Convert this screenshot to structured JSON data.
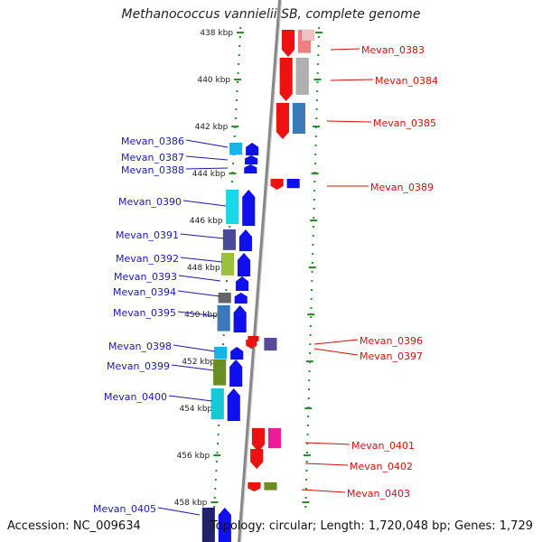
{
  "title": "Methanococcus vannielii SB, complete genome",
  "footer": {
    "accession": "Accession: NC_009634",
    "summary": "Topology: circular; Length: 1,720,048 bp; Genes: 1,729"
  },
  "ruler": {
    "labels": [
      "438 kbp",
      "440 kbp",
      "442 kbp",
      "444 kbp",
      "446 kbp",
      "448 kbp",
      "450 kbp",
      "452 kbp",
      "454 kbp",
      "456 kbp",
      "458 kbp"
    ]
  },
  "genes_right": [
    {
      "id": "Mevan_0383",
      "strand": "-",
      "color": "#ee1111",
      "cog": "#f08080"
    },
    {
      "id": "Mevan_0384",
      "strand": "-",
      "color": "#ee1111",
      "cog": "#b0b0b0"
    },
    {
      "id": "Mevan_0385",
      "strand": "-",
      "color": "#ee1111",
      "cog": "#3a7ab8"
    },
    {
      "id": "Mevan_0389",
      "strand": "-",
      "color": "#ee1111",
      "cog": "#1010ee"
    },
    {
      "id": "Mevan_0396",
      "strand": "-",
      "color": "#ee1111",
      "cog": "#5a4a9a"
    },
    {
      "id": "Mevan_0397",
      "strand": "-",
      "color": "#ee1111",
      "cog": ""
    },
    {
      "id": "Mevan_0401",
      "strand": "-",
      "color": "#ee1111",
      "cog": "#ee1a9a"
    },
    {
      "id": "Mevan_0402",
      "strand": "-",
      "color": "#ee1111",
      "cog": ""
    },
    {
      "id": "Mevan_0403",
      "strand": "-",
      "color": "#ee1111",
      "cog": "#6a8e23"
    }
  ],
  "genes_left": [
    {
      "id": "Mevan_0386",
      "strand": "+",
      "color": "#1010ee",
      "cog": "#19b4e6"
    },
    {
      "id": "Mevan_0387",
      "strand": "+",
      "color": "#1010ee",
      "cog": ""
    },
    {
      "id": "Mevan_0388",
      "strand": "+",
      "color": "#1010ee",
      "cog": ""
    },
    {
      "id": "Mevan_0390",
      "strand": "+",
      "color": "#1010ee",
      "cog": "#19d8e8"
    },
    {
      "id": "Mevan_0391",
      "strand": "+",
      "color": "#1010ee",
      "cog": "#4a4a9a"
    },
    {
      "id": "Mevan_0392",
      "strand": "+",
      "color": "#1010ee",
      "cog": "#9ac23a"
    },
    {
      "id": "Mevan_0393",
      "strand": "+",
      "color": "#1010ee",
      "cog": ""
    },
    {
      "id": "Mevan_0394",
      "strand": "+",
      "color": "#1010ee",
      "cog": "#666666"
    },
    {
      "id": "Mevan_0395",
      "strand": "+",
      "color": "#1010ee",
      "cog": "#3a7ab8"
    },
    {
      "id": "Mevan_0398",
      "strand": "+",
      "color": "#1010ee",
      "cog": "#19b4e6"
    },
    {
      "id": "Mevan_0399",
      "strand": "+",
      "color": "#1010ee",
      "cog": "#6a8e23"
    },
    {
      "id": "Mevan_0400",
      "strand": "+",
      "color": "#1010ee",
      "cog": "#19c8d8"
    },
    {
      "id": "Mevan_0405",
      "strand": "+",
      "color": "#1010ee",
      "cog": "#22226a"
    }
  ],
  "colors": {
    "forward": "#1010ee",
    "reverse": "#ee1111",
    "backbone": "#888888",
    "tick": "#2e8b2e",
    "label_forward": "#1a1aaa",
    "label_reverse": "#cc1111"
  }
}
